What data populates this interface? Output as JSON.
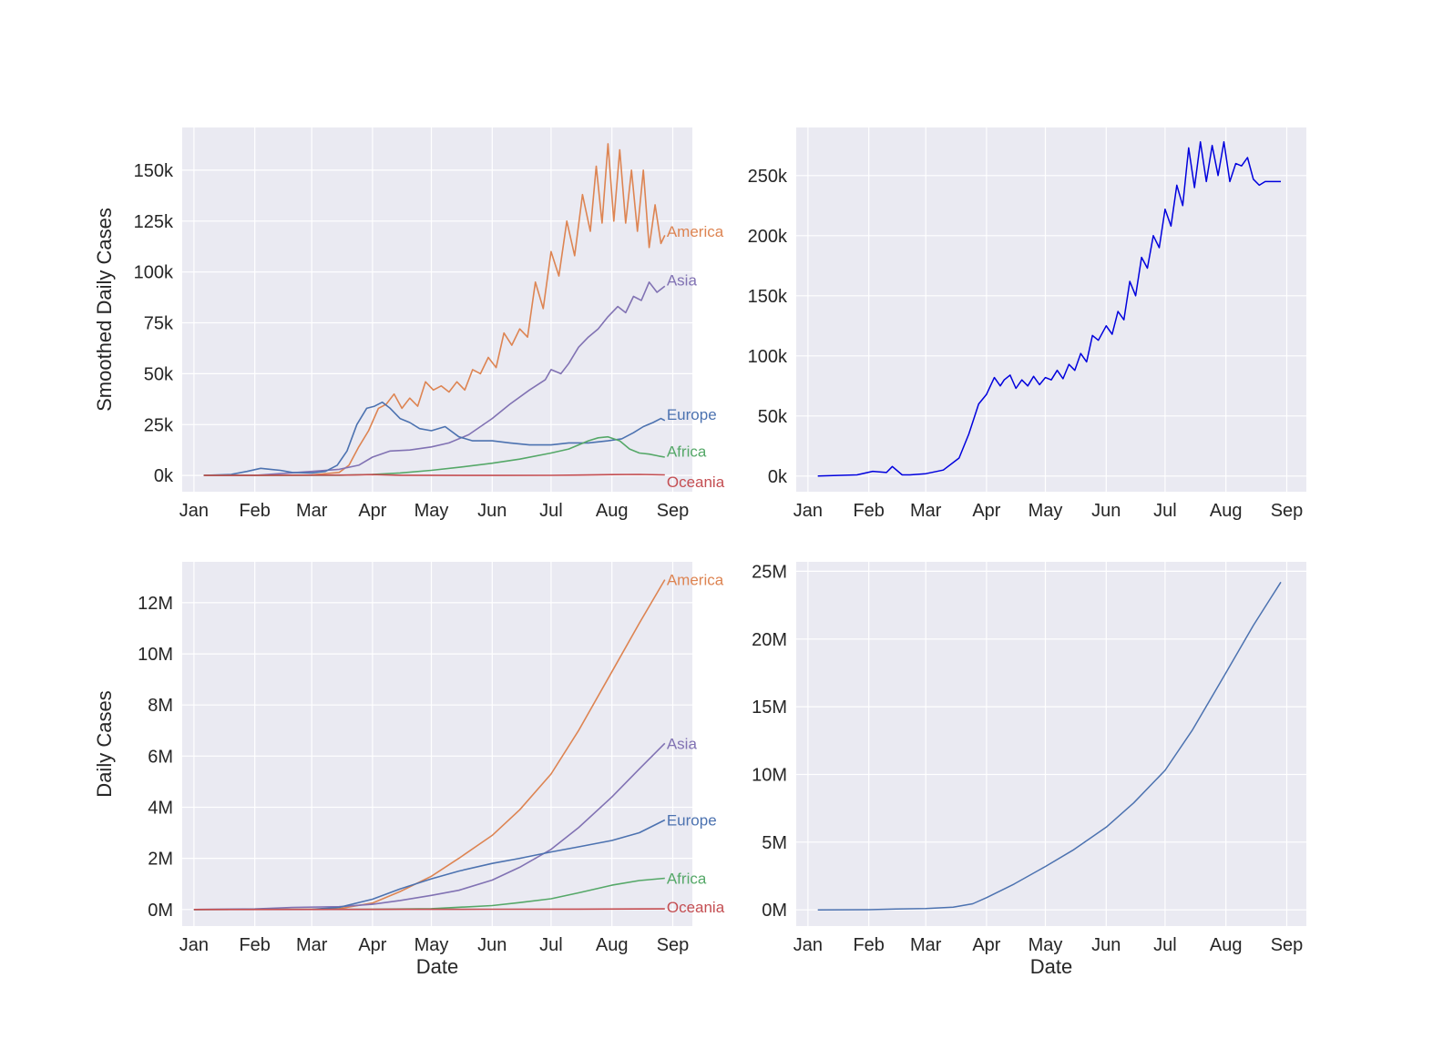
{
  "palette": {
    "America": "#dd8452",
    "Asia": "#8172b3",
    "Europe": "#4c72b0",
    "Africa": "#55a868",
    "Oceania": "#c44e52",
    "world_daily": "#0000dd",
    "world_total": "#4c72b0",
    "plot_bg": "#eaeaf2",
    "grid": "#ffffff",
    "text": "#262626"
  },
  "chart_data": [
    {
      "type": "line",
      "panel": "top-left",
      "title": "",
      "xlabel": "",
      "ylabel": "Smoothed Daily Cases",
      "x_tick_labels": [
        "Jan",
        "Feb",
        "Mar",
        "Apr",
        "May",
        "Jun",
        "Jul",
        "Aug",
        "Sep"
      ],
      "y_tick_values": [
        0,
        25000,
        50000,
        75000,
        100000,
        125000,
        150000
      ],
      "y_tick_labels": [
        "0k",
        "25k",
        "50k",
        "75k",
        "100k",
        "125k",
        "150k"
      ],
      "xlim": [
        "2019-12-26",
        "2020-09-11"
      ],
      "ylim": [
        -8000,
        171000
      ],
      "grid": true,
      "legend": "inline labels at line ends",
      "series": [
        {
          "name": "America",
          "x": [
            "2020-01-06",
            "2020-02-01",
            "2020-03-01",
            "2020-03-15",
            "2020-03-20",
            "2020-03-25",
            "2020-03-30",
            "2020-04-04",
            "2020-04-08",
            "2020-04-12",
            "2020-04-16",
            "2020-04-20",
            "2020-04-24",
            "2020-04-28",
            "2020-05-02",
            "2020-05-06",
            "2020-05-10",
            "2020-05-14",
            "2020-05-18",
            "2020-05-22",
            "2020-05-26",
            "2020-05-30",
            "2020-06-03",
            "2020-06-07",
            "2020-06-11",
            "2020-06-15",
            "2020-06-19",
            "2020-06-23",
            "2020-06-27",
            "2020-07-01",
            "2020-07-05",
            "2020-07-09",
            "2020-07-13",
            "2020-07-17",
            "2020-07-21",
            "2020-07-24",
            "2020-07-27",
            "2020-07-30",
            "2020-08-02",
            "2020-08-05",
            "2020-08-08",
            "2020-08-11",
            "2020-08-14",
            "2020-08-17",
            "2020-08-20",
            "2020-08-23",
            "2020-08-26",
            "2020-08-28"
          ],
          "values": [
            0,
            0,
            300,
            1500,
            5000,
            14000,
            22000,
            33000,
            35000,
            40000,
            33000,
            38000,
            34000,
            46000,
            42000,
            44000,
            41000,
            46000,
            42000,
            52000,
            50000,
            58000,
            53000,
            70000,
            64000,
            72000,
            68000,
            95000,
            82000,
            110000,
            98000,
            125000,
            108000,
            138000,
            120000,
            152000,
            124000,
            163000,
            125000,
            160000,
            124000,
            150000,
            120000,
            150000,
            112000,
            133000,
            114000,
            118000
          ]
        },
        {
          "name": "Asia",
          "x": [
            "2020-01-06",
            "2020-02-01",
            "2020-03-01",
            "2020-03-15",
            "2020-03-25",
            "2020-04-01",
            "2020-04-10",
            "2020-04-20",
            "2020-05-01",
            "2020-05-10",
            "2020-05-20",
            "2020-06-01",
            "2020-06-10",
            "2020-06-20",
            "2020-06-28",
            "2020-07-01",
            "2020-07-06",
            "2020-07-10",
            "2020-07-15",
            "2020-07-20",
            "2020-07-25",
            "2020-07-30",
            "2020-08-04",
            "2020-08-08",
            "2020-08-12",
            "2020-08-16",
            "2020-08-20",
            "2020-08-24",
            "2020-08-28"
          ],
          "values": [
            0,
            0,
            2000,
            3000,
            5000,
            9000,
            12000,
            12500,
            14000,
            16000,
            20000,
            28000,
            35000,
            42000,
            47000,
            52000,
            50000,
            55000,
            63000,
            68000,
            72000,
            78000,
            83000,
            80000,
            88000,
            86000,
            95000,
            90000,
            93000
          ]
        },
        {
          "name": "Europe",
          "x": [
            "2020-01-06",
            "2020-01-20",
            "2020-01-28",
            "2020-02-04",
            "2020-02-09",
            "2020-02-14",
            "2020-02-20",
            "2020-03-01",
            "2020-03-08",
            "2020-03-14",
            "2020-03-19",
            "2020-03-24",
            "2020-03-29",
            "2020-04-02",
            "2020-04-06",
            "2020-04-10",
            "2020-04-15",
            "2020-04-20",
            "2020-04-25",
            "2020-05-01",
            "2020-05-08",
            "2020-05-15",
            "2020-05-22",
            "2020-06-01",
            "2020-06-10",
            "2020-06-20",
            "2020-07-01",
            "2020-07-10",
            "2020-07-20",
            "2020-07-30",
            "2020-08-06",
            "2020-08-12",
            "2020-08-17",
            "2020-08-22",
            "2020-08-26",
            "2020-08-28"
          ],
          "values": [
            0,
            500,
            2000,
            3500,
            3000,
            2500,
            1500,
            1200,
            2000,
            5000,
            12000,
            25000,
            33000,
            34000,
            36000,
            33000,
            28000,
            26000,
            23000,
            22000,
            24000,
            19000,
            17000,
            17000,
            16000,
            15000,
            15000,
            16000,
            16000,
            17000,
            18000,
            21000,
            24000,
            26000,
            28000,
            27000
          ]
        },
        {
          "name": "Africa",
          "x": [
            "2020-01-06",
            "2020-03-15",
            "2020-04-01",
            "2020-04-15",
            "2020-05-01",
            "2020-05-15",
            "2020-06-01",
            "2020-06-15",
            "2020-07-01",
            "2020-07-10",
            "2020-07-15",
            "2020-07-20",
            "2020-07-25",
            "2020-07-30",
            "2020-08-05",
            "2020-08-10",
            "2020-08-15",
            "2020-08-20",
            "2020-08-25",
            "2020-08-28"
          ],
          "values": [
            0,
            100,
            500,
            1200,
            2500,
            4000,
            6000,
            8000,
            11000,
            13000,
            15000,
            17000,
            18500,
            19000,
            17000,
            13000,
            11000,
            10500,
            9500,
            9000
          ]
        },
        {
          "name": "Oceania",
          "x": [
            "2020-01-06",
            "2020-03-20",
            "2020-04-01",
            "2020-04-15",
            "2020-06-01",
            "2020-07-01",
            "2020-07-15",
            "2020-08-01",
            "2020-08-15",
            "2020-08-28"
          ],
          "values": [
            0,
            200,
            400,
            100,
            20,
            50,
            200,
            400,
            500,
            300
          ]
        }
      ]
    },
    {
      "type": "line",
      "panel": "top-right",
      "title": "",
      "xlabel": "",
      "ylabel": "",
      "x_tick_labels": [
        "Jan",
        "Feb",
        "Mar",
        "Apr",
        "May",
        "Jun",
        "Jul",
        "Aug",
        "Sep"
      ],
      "y_tick_values": [
        0,
        50000,
        100000,
        150000,
        200000,
        250000
      ],
      "y_tick_labels": [
        "0k",
        "50k",
        "100k",
        "150k",
        "200k",
        "250k"
      ],
      "xlim": [
        "2019-12-26",
        "2020-09-11"
      ],
      "ylim": [
        -13000,
        290000
      ],
      "grid": true,
      "series": [
        {
          "x": [
            "2020-01-06",
            "2020-01-26",
            "2020-02-03",
            "2020-02-10",
            "2020-02-13",
            "2020-02-18",
            "2020-02-22",
            "2020-03-01",
            "2020-03-10",
            "2020-03-18",
            "2020-03-23",
            "2020-03-28",
            "2020-04-01",
            "2020-04-05",
            "2020-04-08",
            "2020-04-10",
            "2020-04-13",
            "2020-04-16",
            "2020-04-19",
            "2020-04-22",
            "2020-04-25",
            "2020-04-28",
            "2020-05-01",
            "2020-05-04",
            "2020-05-07",
            "2020-05-10",
            "2020-05-13",
            "2020-05-16",
            "2020-05-19",
            "2020-05-22",
            "2020-05-25",
            "2020-05-28",
            "2020-06-01",
            "2020-06-04",
            "2020-06-07",
            "2020-06-10",
            "2020-06-13",
            "2020-06-16",
            "2020-06-19",
            "2020-06-22",
            "2020-06-25",
            "2020-06-28",
            "2020-07-01",
            "2020-07-04",
            "2020-07-07",
            "2020-07-10",
            "2020-07-13",
            "2020-07-16",
            "2020-07-19",
            "2020-07-22",
            "2020-07-25",
            "2020-07-28",
            "2020-07-31",
            "2020-08-03",
            "2020-08-06",
            "2020-08-09",
            "2020-08-12",
            "2020-08-15",
            "2020-08-18",
            "2020-08-21",
            "2020-08-24",
            "2020-08-27",
            "2020-08-29"
          ],
          "values": [
            0,
            1000,
            4000,
            3000,
            8000,
            1000,
            1000,
            2000,
            5000,
            15000,
            35000,
            60000,
            68000,
            82000,
            75000,
            80000,
            84000,
            73000,
            80000,
            75000,
            83000,
            76000,
            82000,
            80000,
            88000,
            81000,
            93000,
            88000,
            102000,
            95000,
            117000,
            113000,
            125000,
            118000,
            137000,
            130000,
            162000,
            150000,
            182000,
            173000,
            200000,
            190000,
            222000,
            208000,
            242000,
            225000,
            273000,
            240000,
            278000,
            245000,
            275000,
            250000,
            278000,
            245000,
            260000,
            258000,
            265000,
            247000,
            242000,
            245000,
            245000,
            245000,
            245000
          ]
        }
      ]
    },
    {
      "type": "line",
      "panel": "bottom-left",
      "title": "",
      "xlabel": "Date",
      "ylabel": "Daily Cases",
      "x_tick_labels": [
        "Jan",
        "Feb",
        "Mar",
        "Apr",
        "May",
        "Jun",
        "Jul",
        "Aug",
        "Sep"
      ],
      "y_tick_values": [
        0,
        2000000,
        4000000,
        6000000,
        8000000,
        10000000,
        12000000
      ],
      "y_tick_labels": [
        "0M",
        "2M",
        "4M",
        "6M",
        "8M",
        "10M",
        "12M"
      ],
      "xlim": [
        "2019-12-26",
        "2020-09-11"
      ],
      "ylim": [
        -650000,
        13600000
      ],
      "grid": true,
      "legend": "inline labels at line ends",
      "series": [
        {
          "name": "America",
          "x": [
            "2020-01-01",
            "2020-03-01",
            "2020-03-15",
            "2020-04-01",
            "2020-04-15",
            "2020-05-01",
            "2020-05-15",
            "2020-06-01",
            "2020-06-15",
            "2020-07-01",
            "2020-07-15",
            "2020-08-01",
            "2020-08-15",
            "2020-08-28"
          ],
          "values": [
            0,
            5000,
            30000,
            250000,
            700000,
            1300000,
            2000000,
            2900000,
            3900000,
            5300000,
            7000000,
            9300000,
            11200000,
            12900000
          ]
        },
        {
          "name": "Asia",
          "x": [
            "2020-01-01",
            "2020-02-01",
            "2020-02-20",
            "2020-03-15",
            "2020-04-01",
            "2020-04-15",
            "2020-05-01",
            "2020-05-15",
            "2020-06-01",
            "2020-06-15",
            "2020-07-01",
            "2020-07-15",
            "2020-08-01",
            "2020-08-15",
            "2020-08-28"
          ],
          "values": [
            0,
            20000,
            80000,
            110000,
            200000,
            350000,
            550000,
            750000,
            1150000,
            1650000,
            2350000,
            3200000,
            4400000,
            5500000,
            6500000
          ]
        },
        {
          "name": "Europe",
          "x": [
            "2020-01-01",
            "2020-03-01",
            "2020-03-15",
            "2020-04-01",
            "2020-04-15",
            "2020-05-01",
            "2020-05-15",
            "2020-06-01",
            "2020-06-15",
            "2020-07-01",
            "2020-07-15",
            "2020-08-01",
            "2020-08-15",
            "2020-08-28"
          ],
          "values": [
            0,
            5000,
            80000,
            400000,
            800000,
            1200000,
            1500000,
            1800000,
            2000000,
            2250000,
            2450000,
            2700000,
            3000000,
            3500000
          ]
        },
        {
          "name": "Africa",
          "x": [
            "2020-01-01",
            "2020-04-01",
            "2020-05-01",
            "2020-06-01",
            "2020-06-15",
            "2020-07-01",
            "2020-07-15",
            "2020-08-01",
            "2020-08-15",
            "2020-08-28"
          ],
          "values": [
            0,
            5000,
            30000,
            150000,
            270000,
            420000,
            650000,
            950000,
            1130000,
            1220000
          ]
        },
        {
          "name": "Oceania",
          "x": [
            "2020-01-01",
            "2020-03-15",
            "2020-04-15",
            "2020-06-01",
            "2020-07-15",
            "2020-08-28"
          ],
          "values": [
            0,
            500,
            6000,
            8000,
            12000,
            25000
          ]
        }
      ]
    },
    {
      "type": "line",
      "panel": "bottom-right",
      "title": "",
      "xlabel": "Date",
      "ylabel": "",
      "x_tick_labels": [
        "Jan",
        "Feb",
        "Mar",
        "Apr",
        "May",
        "Jun",
        "Jul",
        "Aug",
        "Sep"
      ],
      "y_tick_values": [
        0,
        5000000,
        10000000,
        15000000,
        20000000,
        25000000
      ],
      "y_tick_labels": [
        "0M",
        "5M",
        "10M",
        "15M",
        "20M",
        "25M"
      ],
      "xlim": [
        "2019-12-26",
        "2020-09-11"
      ],
      "ylim": [
        -1200000,
        25700000
      ],
      "grid": true,
      "series": [
        {
          "x": [
            "2020-01-06",
            "2020-02-01",
            "2020-02-15",
            "2020-03-01",
            "2020-03-15",
            "2020-03-25",
            "2020-04-01",
            "2020-04-15",
            "2020-05-01",
            "2020-05-15",
            "2020-06-01",
            "2020-06-15",
            "2020-07-01",
            "2020-07-15",
            "2020-08-01",
            "2020-08-15",
            "2020-08-29"
          ],
          "values": [
            0,
            10000,
            60000,
            90000,
            200000,
            450000,
            900000,
            1900000,
            3200000,
            4400000,
            6100000,
            7900000,
            10300000,
            13300000,
            17500000,
            21000000,
            24200000
          ]
        }
      ]
    }
  ]
}
